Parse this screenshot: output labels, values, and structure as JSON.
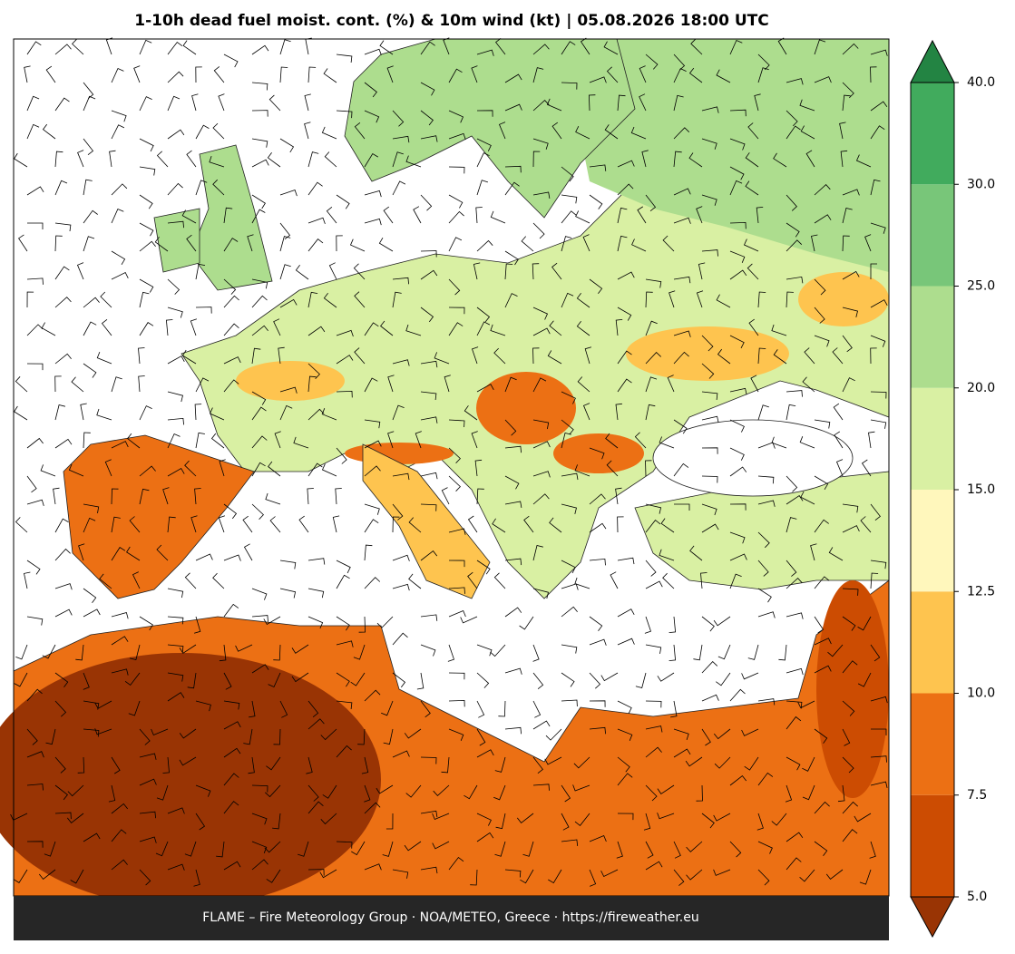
{
  "title": "1-10h dead fuel moist. cont. (%) & 10m wind (kt)  |  05.08.2026 18:00 UTC",
  "footer": "FLAME – Fire Meteorology Group · NOA/METEO, Greece · https://fireweather.eu",
  "colorbar": {
    "ticks": [
      {
        "value": 5,
        "label": "5.0"
      },
      {
        "value": 7.5,
        "label": "7.5"
      },
      {
        "value": 10,
        "label": "10.0"
      },
      {
        "value": 12.5,
        "label": "12.5"
      },
      {
        "value": 15,
        "label": "15.0"
      },
      {
        "value": 20,
        "label": "20.0"
      },
      {
        "value": 25,
        "label": "25.0"
      },
      {
        "value": 30,
        "label": "30.0"
      },
      {
        "value": 40,
        "label": "40.0"
      }
    ],
    "colors": [
      "#993404",
      "#cc4c02",
      "#ec7014",
      "#fec44f",
      "#fff7bc",
      "#d9f0a3",
      "#addd8e",
      "#78c679",
      "#41ab5d",
      "#238443"
    ]
  }
}
